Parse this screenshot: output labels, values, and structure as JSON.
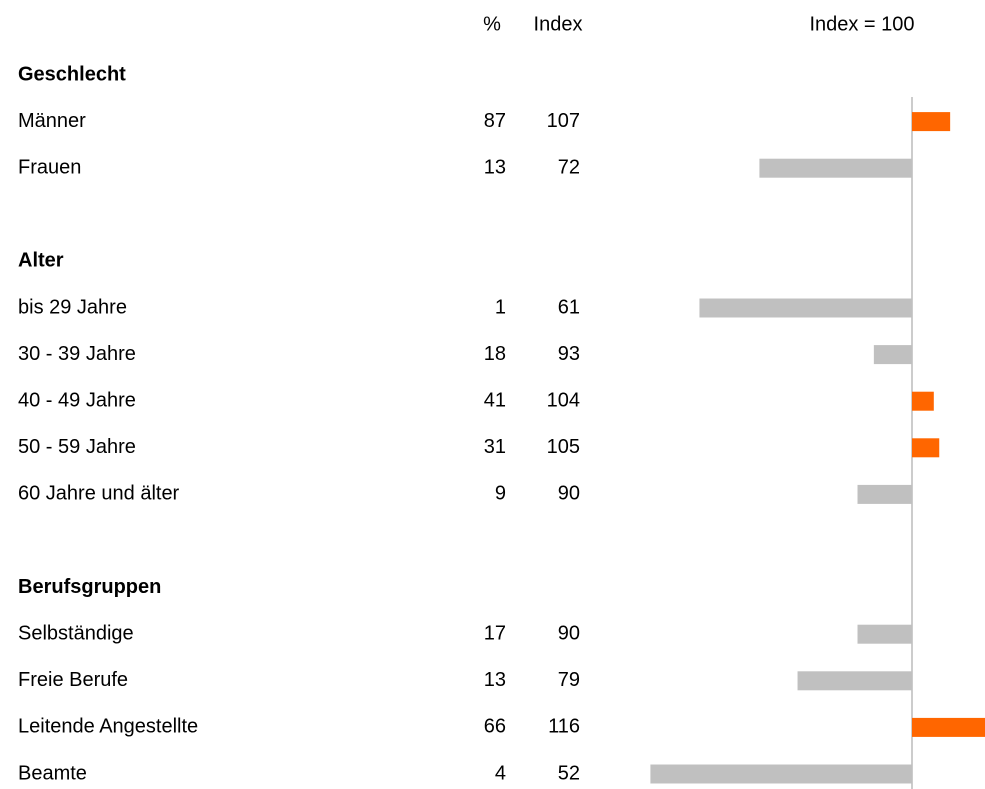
{
  "header": {
    "pct": "%",
    "index": "Index"
  },
  "chart_data": {
    "type": "bar",
    "baseline": {
      "value": 100,
      "label": "Index = 100"
    },
    "colors": {
      "above": "#ff6600",
      "below": "#c0c0c0"
    },
    "groups": [
      {
        "name": "Geschlecht",
        "rows": [
          {
            "label": "Männer",
            "pct": 87,
            "index": 107
          },
          {
            "label": "Frauen",
            "pct": 13,
            "index": 72
          }
        ]
      },
      {
        "name": "Alter",
        "rows": [
          {
            "label": "bis 29 Jahre",
            "pct": 1,
            "index": 61
          },
          {
            "label": "30 - 39 Jahre",
            "pct": 18,
            "index": 93
          },
          {
            "label": "40 - 49 Jahre",
            "pct": 41,
            "index": 104
          },
          {
            "label": "50 - 59 Jahre",
            "pct": 31,
            "index": 105
          },
          {
            "label": "60 Jahre und älter",
            "pct": 9,
            "index": 90
          }
        ]
      },
      {
        "name": "Berufsgruppen",
        "rows": [
          {
            "label": "Selbständige",
            "pct": 17,
            "index": 90
          },
          {
            "label": "Freie Berufe",
            "pct": 13,
            "index": 79
          },
          {
            "label": "Leitende Angestellte",
            "pct": 66,
            "index": 116
          },
          {
            "label": "Beamte",
            "pct": 4,
            "index": 52
          }
        ]
      }
    ]
  }
}
